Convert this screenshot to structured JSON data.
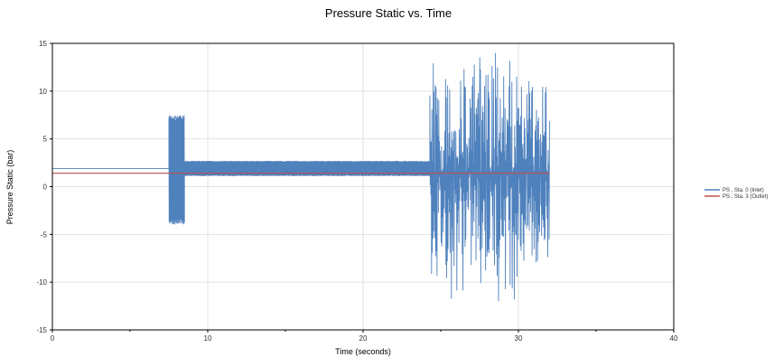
{
  "chart_data": {
    "type": "line",
    "title": "Pressure Static vs. Time",
    "xlabel": "Time (seconds)",
    "ylabel": "Pressure Static (bar)",
    "xlim": [
      0,
      40
    ],
    "ylim": [
      -15,
      15
    ],
    "xticks": [
      0,
      10,
      20,
      30,
      40
    ],
    "yticks": [
      -15,
      -10,
      -5,
      0,
      5,
      10,
      15
    ],
    "grid": true,
    "legend_position": "right",
    "colors": {
      "inlet": "#4f81bd",
      "outlet": "#c0504d",
      "grid": "#e2e2e2",
      "frame": "#000000"
    },
    "series": [
      {
        "name": "PS , Sta. 0 (Inlet)",
        "color": "#4f81bd",
        "segments": [
          {
            "t": [
              0,
              7.5
            ],
            "kind": "flat",
            "value": 1.9
          },
          {
            "t": [
              7.5,
              8.5
            ],
            "kind": "oscillation",
            "low": -4.0,
            "high": 7.5
          },
          {
            "t": [
              8.5,
              24.3
            ],
            "kind": "oscillation",
            "low": 1.1,
            "high": 2.7
          },
          {
            "t": [
              24.3,
              32.0
            ],
            "kind": "oscillation",
            "low": -12.3,
            "high": 14.4
          }
        ]
      },
      {
        "name": "PS , Sta. 3 (Outlet)",
        "color": "#c0504d",
        "segments": [
          {
            "t": [
              0,
              32.0
            ],
            "kind": "flat",
            "value": 1.4
          }
        ]
      }
    ]
  }
}
